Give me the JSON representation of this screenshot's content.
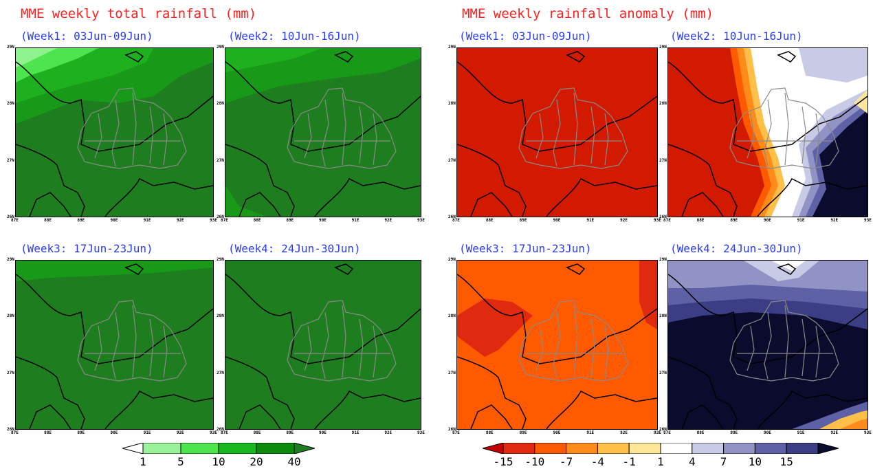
{
  "left_title": "MME weekly total rainfall (mm)",
  "right_title": "MME weekly rainfall anomaly (mm)",
  "weeks": [
    "(Week1: 03Jun-09Jun)",
    "(Week2: 10Jun-16Jun)",
    "(Week3: 17Jun-23Jun)",
    "(Week4: 24Jun-30Jun)"
  ],
  "rainfall_colorbar": {
    "labels": [
      "1",
      "5",
      "10",
      "20",
      "40"
    ],
    "colors": [
      "#ffffff",
      "#9af29a",
      "#4ee44e",
      "#19b81e",
      "#0b8a0b",
      "#1e7d1e"
    ]
  },
  "anomaly_colorbar": {
    "labels": [
      "-15",
      "-10",
      "-7",
      "-4",
      "-1",
      "1",
      "4",
      "7",
      "10",
      "15"
    ],
    "colors": [
      "#c40000",
      "#e02a10",
      "#ff5a00",
      "#ff8c1a",
      "#ffc04a",
      "#ffe79a",
      "#ffffff",
      "#c8cae6",
      "#9093c4",
      "#5f61a6",
      "#3b3d85",
      "#0b0b2e"
    ]
  },
  "axis_ticks": {
    "lat": [
      "29N",
      "28N",
      "27N",
      "26N"
    ],
    "lon": [
      "87E",
      "88E",
      "89E",
      "90E",
      "91E",
      "92E",
      "93E"
    ]
  }
}
